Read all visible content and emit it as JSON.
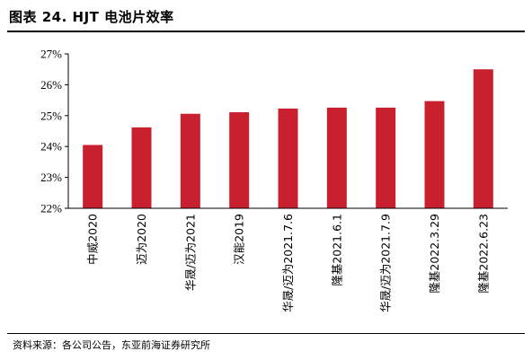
{
  "header": {
    "title": "图表 24. HJT 电池片效率"
  },
  "footer": {
    "source": "资料来源：各公司公告，东亚前海证券研究所"
  },
  "colors": {
    "bar": "#c8202e",
    "axis": "#000000"
  },
  "chart_data": {
    "type": "bar",
    "title": "图表 24. HJT 电池片效率",
    "xlabel": "",
    "ylabel": "",
    "categories": [
      "中威2020",
      "迈为2020",
      "华晟/迈为2021",
      "汉能2019",
      "华晟/迈为2021.7.6",
      "隆基2021.6.1",
      "华晟/迈为2021.7.9",
      "隆基2022.3.29",
      "隆基2022.6.23"
    ],
    "values": [
      24.05,
      24.62,
      25.06,
      25.11,
      25.23,
      25.26,
      25.26,
      25.47,
      26.5
    ],
    "ylim": [
      22,
      27
    ],
    "yticks": [
      22,
      23,
      24,
      25,
      26,
      27
    ],
    "ytick_labels": [
      "22%",
      "23%",
      "24%",
      "25%",
      "26%",
      "27%"
    ],
    "grid": false,
    "legend": "none"
  }
}
